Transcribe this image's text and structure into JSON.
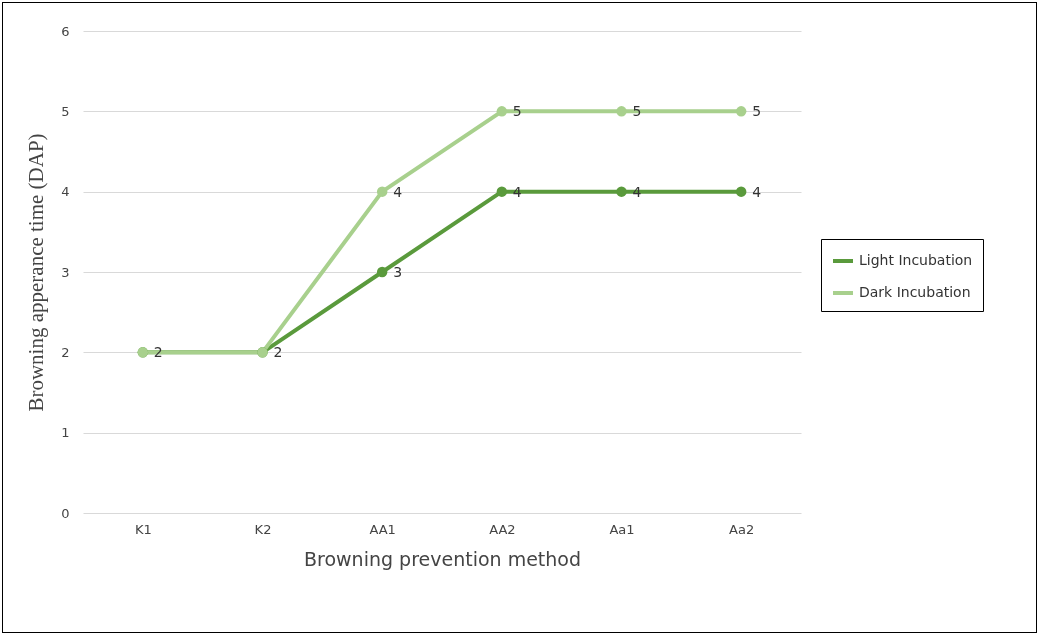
{
  "chart_data": {
    "type": "line",
    "xlabel": "Browning prevention method",
    "ylabel": "Browning apperance time (DAP)",
    "categories": [
      "K1",
      "K2",
      "AA1",
      "AA2",
      "Aa1",
      "Aa2"
    ],
    "series": [
      {
        "name": "Light Incubation",
        "color": "#5a9a3c",
        "values": [
          2,
          2,
          3,
          4,
          4,
          4
        ]
      },
      {
        "name": "Dark Incubation",
        "color": "#a8d08d",
        "values": [
          2,
          2,
          4,
          5,
          5,
          5
        ],
        "value_labels": [
          null,
          null,
          "4",
          "5",
          "5",
          "5"
        ]
      }
    ],
    "ylim": [
      0,
      6
    ],
    "yticks": [
      0,
      1,
      2,
      3,
      4,
      5,
      6
    ],
    "grid": "y",
    "legend": "right",
    "marker": "circle",
    "data_labels": true
  }
}
